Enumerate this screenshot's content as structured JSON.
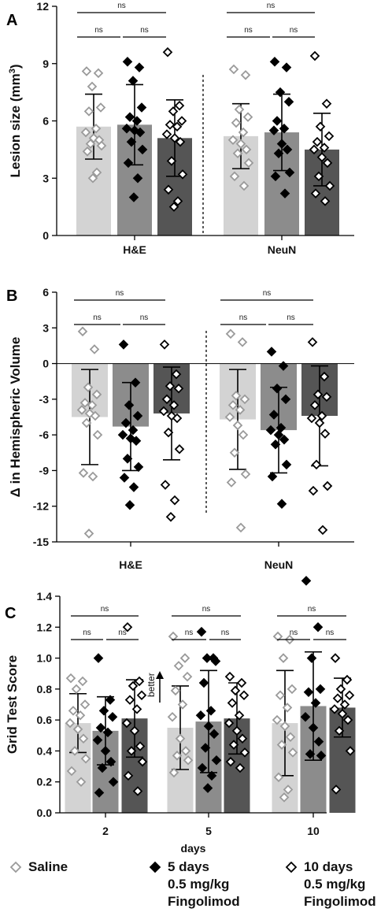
{
  "colors": {
    "saline_bar": "#d3d3d3",
    "treat5_bar": "#8c8c8c",
    "treat10_bar": "#555555",
    "saline_marker": "#9a9a9a",
    "treat5_marker": "#000000",
    "treat10_marker": "#ffffff"
  },
  "legend": [
    {
      "lines": [
        "Saline"
      ],
      "marker": "diamond-open-grey"
    },
    {
      "lines": [
        "5 days",
        "0.5 mg/kg",
        "Fingolimod"
      ],
      "marker": "diamond-filled-black"
    },
    {
      "lines": [
        "10 days",
        "0.5 mg/kg",
        "Fingolimod"
      ],
      "marker": "diamond-open-black"
    }
  ],
  "chart_data": [
    {
      "panel": "A",
      "type": "bar",
      "ylabel_main": "Lesion size (mm",
      "ylabel_sup": "3",
      "ylabel_close": ")",
      "ylim": [
        0,
        12
      ],
      "yticks": [
        "0",
        "3",
        "6",
        "9",
        "12"
      ],
      "categories": [
        "H&E",
        "NeuN"
      ],
      "divider": true,
      "significance": [
        "ns",
        "ns",
        "ns",
        "ns",
        "ns",
        "ns"
      ],
      "series": [
        {
          "means": [
            5.7,
            5.2
          ],
          "sd": [
            1.7,
            1.7
          ],
          "points": [
            [
              8.6,
              8.5,
              7.8,
              6.7,
              6.5,
              5.6,
              5.4,
              5.1,
              5.0,
              4.8,
              4.7,
              4.4,
              3.3,
              3.0
            ],
            [
              8.7,
              8.4,
              6.6,
              6.2,
              5.9,
              5.4,
              5.0,
              4.8,
              4.5,
              4.3,
              3.8,
              3.1,
              2.6
            ]
          ]
        },
        {
          "means": [
            5.8,
            5.4
          ],
          "sd": [
            2.1,
            2.0
          ],
          "points": [
            [
              9.1,
              8.8,
              8.1,
              6.7,
              6.2,
              6.0,
              5.6,
              5.5,
              5.4,
              4.9,
              4.5,
              3.8,
              3.0,
              2.0
            ],
            [
              9.1,
              8.8,
              7.5,
              7.0,
              6.0,
              5.6,
              5.5,
              4.8,
              4.5,
              4.3,
              3.3,
              3.1,
              2.2
            ]
          ]
        },
        {
          "means": [
            5.1,
            4.5
          ],
          "sd": [
            2.0,
            1.9
          ],
          "points": [
            [
              9.6,
              6.8,
              6.5,
              6.0,
              5.8,
              5.7,
              5.3,
              5.1,
              4.9,
              3.9,
              3.2,
              2.4,
              1.8,
              1.5
            ],
            [
              9.4,
              6.9,
              5.7,
              5.2,
              4.9,
              4.6,
              4.5,
              4.1,
              3.8,
              3.1,
              2.6,
              2.2,
              1.8
            ]
          ]
        }
      ]
    },
    {
      "panel": "B",
      "type": "bar",
      "ylabel_main": "Δ in Hemispheric Volume",
      "ylim": [
        -15,
        6
      ],
      "yticks": [
        "6",
        "3",
        "0",
        "-3",
        "-6",
        "-9",
        "-12",
        "-15"
      ],
      "categories": [
        "H&E",
        "NeuN"
      ],
      "divider": true,
      "zero_line": true,
      "significance": [
        "ns",
        "ns",
        "ns",
        "ns",
        "ns",
        "ns"
      ],
      "series": [
        {
          "means": [
            -4.5,
            -4.7
          ],
          "sd": [
            4.0,
            4.2
          ],
          "points": [
            [
              2.7,
              1.2,
              -2.0,
              -2.6,
              -3.3,
              -3.5,
              -3.9,
              -4.2,
              -4.4,
              -5.0,
              -6.0,
              -9.2,
              -9.5,
              -14.3
            ],
            [
              2.5,
              1.8,
              -2.7,
              -3.0,
              -3.5,
              -3.9,
              -4.5,
              -5.2,
              -6.0,
              -7.5,
              -9.3,
              -10.0,
              -13.8
            ]
          ]
        },
        {
          "means": [
            -5.3,
            -5.6
          ],
          "sd": [
            3.7,
            3.6
          ],
          "points": [
            [
              1.6,
              -1.6,
              -3.5,
              -4.4,
              -5.0,
              -5.6,
              -6.0,
              -6.3,
              -6.5,
              -8.0,
              -8.7,
              -9.6,
              -10.4,
              -11.9
            ],
            [
              1.0,
              -0.2,
              -2.1,
              -3.0,
              -4.3,
              -5.4,
              -5.6,
              -6.0,
              -6.4,
              -6.8,
              -8.5,
              -9.5,
              -11.8
            ]
          ]
        },
        {
          "means": [
            -4.2,
            -4.4
          ],
          "sd": [
            3.9,
            4.2
          ],
          "points": [
            [
              1.6,
              -0.9,
              -1.9,
              -2.1,
              -3.0,
              -3.5,
              -4.0,
              -4.4,
              -4.6,
              -5.8,
              -7.2,
              -10.2,
              -11.5,
              -12.9
            ],
            [
              1.8,
              -1.1,
              -2.6,
              -2.8,
              -3.5,
              -4.4,
              -4.6,
              -5.0,
              -5.9,
              -8.5,
              -10.3,
              -10.7,
              -14.0
            ]
          ]
        }
      ]
    },
    {
      "panel": "C",
      "type": "bar",
      "ylabel_main": "Grid Test Score",
      "xlabel": "days",
      "ylim": [
        0,
        1.4
      ],
      "yticks": [
        "0.0",
        "0.2",
        "0.4",
        "0.6",
        "0.8",
        "1.0",
        "1.2",
        "1.4"
      ],
      "categories": [
        "2",
        "5",
        "10"
      ],
      "divider": false,
      "annotation": "better",
      "significance": [
        "ns",
        "ns",
        "ns",
        "ns",
        "ns",
        "ns",
        "ns",
        "ns",
        "ns"
      ],
      "series": [
        {
          "means": [
            0.58,
            0.55,
            0.58
          ],
          "sd": [
            0.19,
            0.27,
            0.34
          ],
          "points": [
            [
              0.87,
              0.85,
              0.8,
              0.7,
              0.66,
              0.63,
              0.58,
              0.54,
              0.48,
              0.4,
              0.35,
              0.27,
              0.2
            ],
            [
              1.14,
              1.0,
              0.95,
              0.88,
              0.79,
              0.7,
              0.62,
              0.48,
              0.4,
              0.37,
              0.34,
              0.26
            ],
            [
              1.14,
              1.12,
              1.0,
              0.8,
              0.76,
              0.68,
              0.6,
              0.56,
              0.49,
              0.44,
              0.39,
              0.23,
              0.15,
              0.1
            ]
          ]
        },
        {
          "means": [
            0.53,
            0.59,
            0.69
          ],
          "sd": [
            0.22,
            0.33,
            0.35
          ],
          "points": [
            [
              1.0,
              0.73,
              0.66,
              0.62,
              0.55,
              0.52,
              0.47,
              0.4,
              0.33,
              0.29,
              0.2,
              0.13
            ],
            [
              1.17,
              1.0,
              1.0,
              0.98,
              0.84,
              0.66,
              0.63,
              0.56,
              0.51,
              0.42,
              0.34,
              0.29,
              0.24,
              0.16
            ],
            [
              1.5,
              1.2,
              1.0,
              0.8,
              0.78,
              0.71,
              0.62,
              0.55,
              0.46,
              0.38,
              0.37
            ]
          ]
        },
        {
          "means": [
            0.61,
            0.61,
            0.68
          ],
          "sd": [
            0.25,
            0.23,
            0.19
          ],
          "points": [
            [
              1.2,
              0.85,
              0.82,
              0.76,
              0.73,
              0.67,
              0.58,
              0.53,
              0.43,
              0.4,
              0.33,
              0.24,
              0.14
            ],
            [
              0.88,
              0.84,
              0.79,
              0.76,
              0.71,
              0.63,
              0.58,
              0.53,
              0.48,
              0.44,
              0.39,
              0.33,
              0.29
            ],
            [
              1.0,
              0.86,
              0.8,
              0.76,
              0.74,
              0.7,
              0.67,
              0.64,
              0.6,
              0.53,
              0.4,
              0.15
            ]
          ]
        }
      ]
    }
  ]
}
